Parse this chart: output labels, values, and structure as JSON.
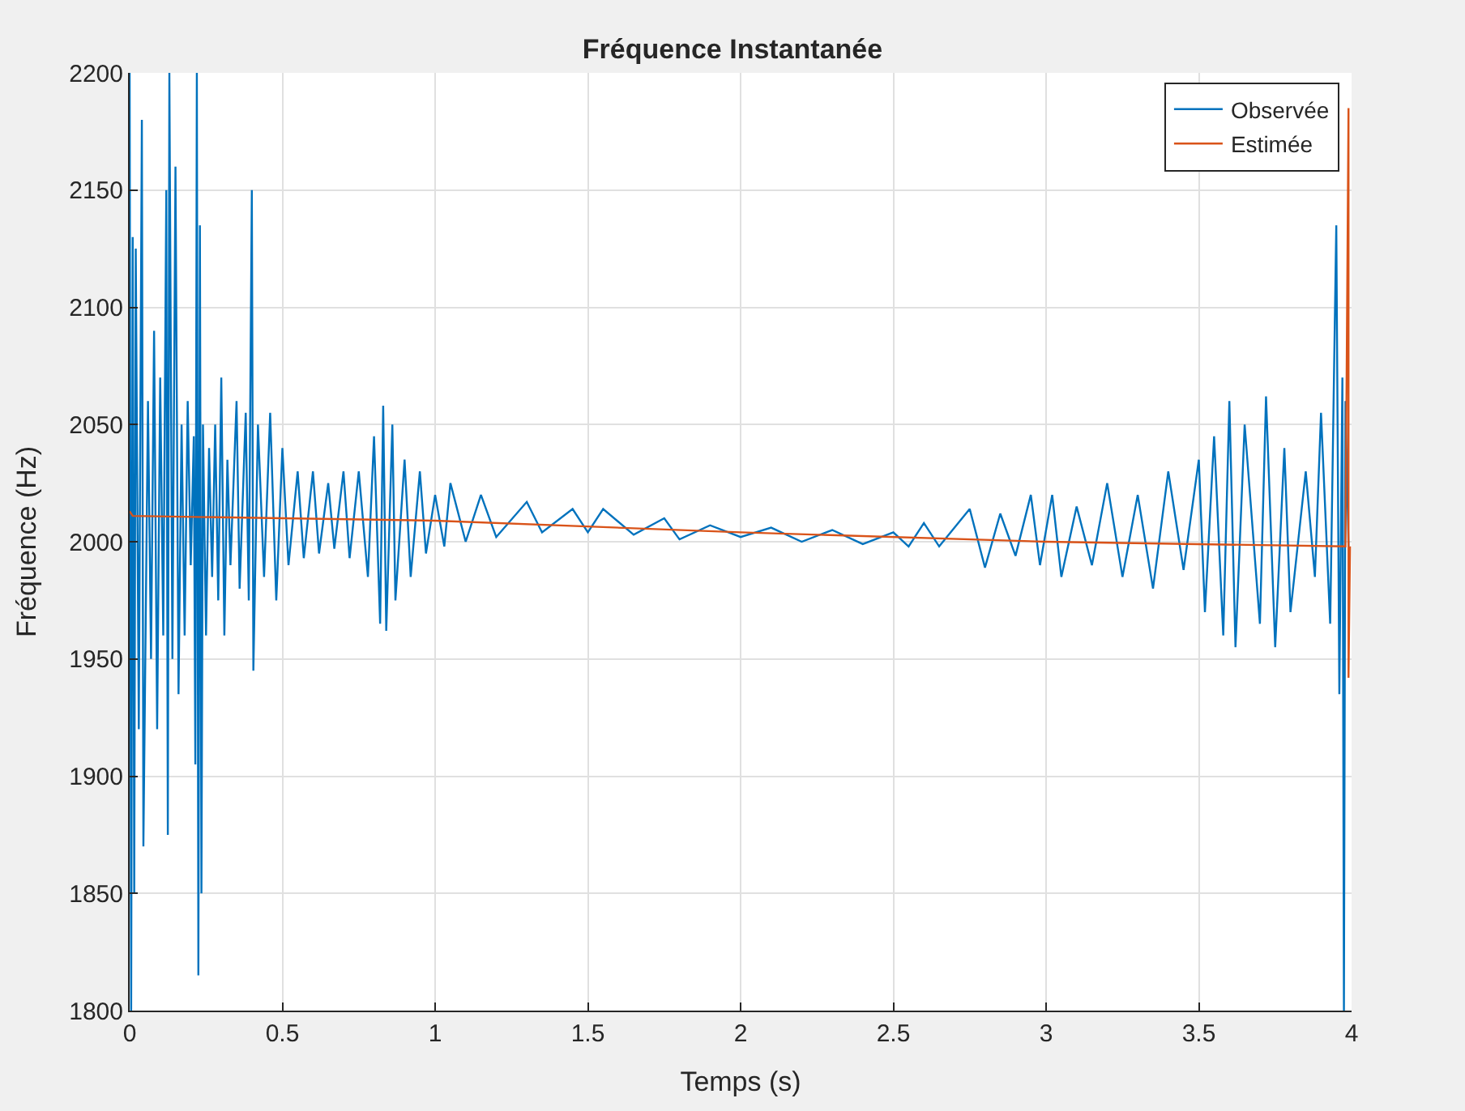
{
  "chart_data": {
    "type": "line",
    "title": "Fréquence Instantanée",
    "xlabel": "Temps (s)",
    "ylabel": "Fréquence (Hz)",
    "xlim": [
      0,
      4
    ],
    "ylim": [
      1800,
      2200
    ],
    "xticks": [
      0,
      0.5,
      1,
      1.5,
      2,
      2.5,
      3,
      3.5,
      4
    ],
    "yticks": [
      1800,
      1850,
      1900,
      1950,
      2000,
      2050,
      2100,
      2150,
      2200
    ],
    "grid": true,
    "legend": "top right",
    "series": [
      {
        "name": "Observée",
        "color": "#0072bd",
        "x": [
          0,
          0.005,
          0.01,
          0.015,
          0.02,
          0.03,
          0.04,
          0.045,
          0.06,
          0.07,
          0.08,
          0.09,
          0.1,
          0.11,
          0.12,
          0.125,
          0.13,
          0.14,
          0.15,
          0.16,
          0.17,
          0.18,
          0.19,
          0.2,
          0.21,
          0.215,
          0.22,
          0.225,
          0.23,
          0.235,
          0.24,
          0.25,
          0.26,
          0.27,
          0.28,
          0.29,
          0.3,
          0.31,
          0.32,
          0.33,
          0.35,
          0.36,
          0.38,
          0.39,
          0.4,
          0.405,
          0.42,
          0.44,
          0.46,
          0.48,
          0.5,
          0.52,
          0.55,
          0.57,
          0.6,
          0.62,
          0.65,
          0.67,
          0.7,
          0.72,
          0.75,
          0.78,
          0.8,
          0.82,
          0.83,
          0.84,
          0.86,
          0.87,
          0.9,
          0.92,
          0.95,
          0.97,
          1.0,
          1.03,
          1.05,
          1.1,
          1.15,
          1.2,
          1.3,
          1.35,
          1.45,
          1.5,
          1.55,
          1.65,
          1.75,
          1.8,
          1.9,
          2.0,
          2.1,
          2.2,
          2.3,
          2.4,
          2.5,
          2.55,
          2.6,
          2.65,
          2.75,
          2.8,
          2.85,
          2.9,
          2.95,
          2.98,
          3.02,
          3.05,
          3.1,
          3.15,
          3.2,
          3.25,
          3.3,
          3.35,
          3.4,
          3.45,
          3.5,
          3.52,
          3.55,
          3.58,
          3.6,
          3.62,
          3.65,
          3.7,
          3.72,
          3.75,
          3.78,
          3.8,
          3.85,
          3.88,
          3.9,
          3.93,
          3.95,
          3.96,
          3.97,
          3.975,
          3.98,
          3.99
        ],
        "values": [
          2200,
          1800,
          2130,
          1850,
          2125,
          1920,
          2180,
          1870,
          2060,
          1950,
          2090,
          1920,
          2070,
          1960,
          2150,
          1875,
          2200,
          1950,
          2160,
          1935,
          2050,
          1960,
          2060,
          1990,
          2045,
          1905,
          2200,
          1815,
          2135,
          1850,
          2050,
          1960,
          2040,
          1985,
          2050,
          1975,
          2070,
          1960,
          2035,
          1990,
          2060,
          1980,
          2055,
          1975,
          2150,
          1945,
          2050,
          1985,
          2055,
          1975,
          2040,
          1990,
          2030,
          1993,
          2030,
          1995,
          2025,
          1997,
          2030,
          1993,
          2030,
          1985,
          2045,
          1965,
          2058,
          1962,
          2050,
          1975,
          2035,
          1985,
          2030,
          1995,
          2020,
          1998,
          2025,
          2000,
          2020,
          2002,
          2017,
          2004,
          2014,
          2004,
          2014,
          2003,
          2010,
          2001,
          2007,
          2002,
          2006,
          2000,
          2005,
          1999,
          2004,
          1998,
          2008,
          1998,
          2014,
          1989,
          2012,
          1994,
          2020,
          1990,
          2020,
          1985,
          2015,
          1990,
          2025,
          1985,
          2020,
          1980,
          2030,
          1988,
          2035,
          1970,
          2045,
          1960,
          2060,
          1955,
          2050,
          1965,
          2062,
          1955,
          2040,
          1970,
          2030,
          1985,
          2055,
          1965,
          2135,
          1935,
          2070,
          1800,
          2060,
          1998
        ]
      },
      {
        "name": "Estimée",
        "color": "#d95319",
        "x": [
          0,
          0.01,
          1,
          2,
          3,
          3.98,
          3.99,
          3.99,
          3.995
        ],
        "values": [
          2013,
          2011,
          2009,
          2004,
          2000,
          1998,
          2185,
          1942,
          1998
        ]
      }
    ]
  }
}
